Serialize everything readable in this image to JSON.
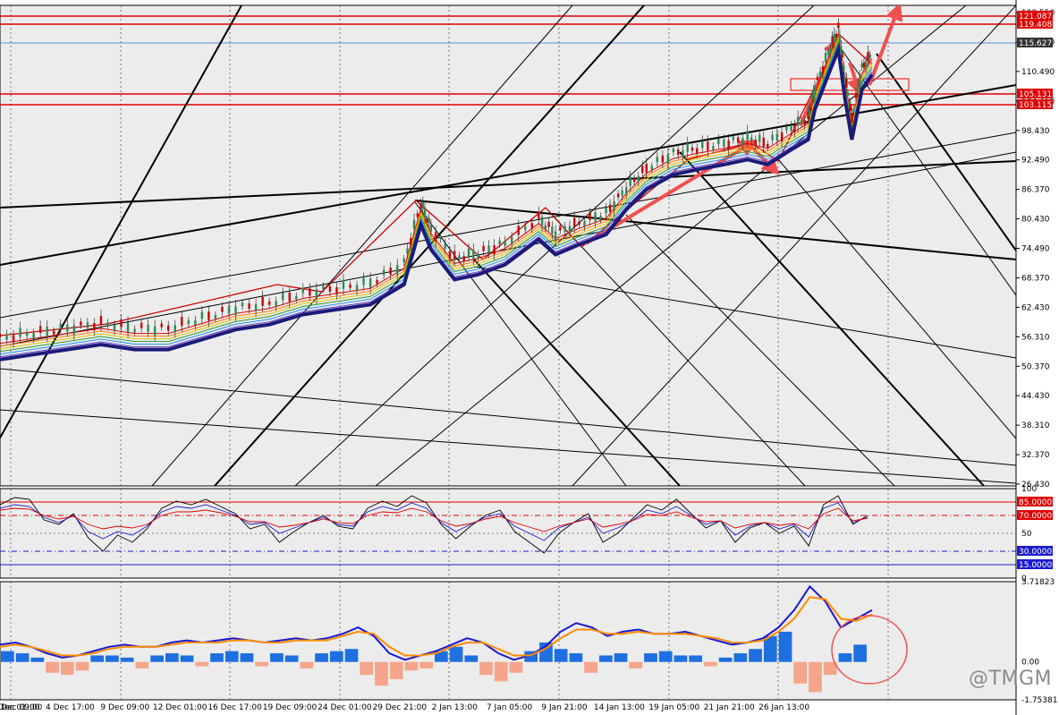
{
  "watermark": "@TMGM",
  "chart_data": [
    {
      "panel": "price",
      "type": "candlestick",
      "ylim": [
        26.43,
        122.55
      ],
      "y_ticks": [
        "122.550",
        "116.520",
        "110.490",
        "104.460",
        "98.430",
        "92.490",
        "86.370",
        "80.430",
        "74.490",
        "68.370",
        "62.430",
        "56.310",
        "50.370",
        "44.430",
        "38.310",
        "32.370",
        "26.430"
      ],
      "price_markers": [
        {
          "label": "121.087",
          "color": "#e00000"
        },
        {
          "label": "119.408",
          "color": "#e00000"
        },
        {
          "label": "115.627",
          "color": "#333333"
        },
        {
          "label": "105.131",
          "color": "#e00000"
        },
        {
          "label": "103.115",
          "color": "#e00000"
        }
      ],
      "x_labels": [
        "1 Dec 09:00",
        "2 Dec 01:00",
        "4 Dec 17:00",
        "9 Dec 09:00",
        "12 Dec 01:00",
        "16 Dec 17:00",
        "19 Dec 09:00",
        "24 Dec 01:00",
        "29 Dec 21:00",
        "2 Jan 13:00",
        "7 Jan 05:00",
        "9 Jan 21:00",
        "14 Jan 13:00",
        "19 Jan 05:00",
        "21 Jan 21:00",
        "26 Jan 13:00"
      ],
      "price_path": [
        [
          0,
          56
        ],
        [
          10,
          57
        ],
        [
          20,
          58
        ],
        [
          30,
          59
        ],
        [
          40,
          58
        ],
        [
          50,
          58
        ],
        [
          60,
          60
        ],
        [
          70,
          62
        ],
        [
          80,
          63
        ],
        [
          90,
          65
        ],
        [
          100,
          66
        ],
        [
          110,
          67
        ],
        [
          120,
          71
        ],
        [
          125,
          83
        ],
        [
          128,
          78
        ],
        [
          135,
          72
        ],
        [
          142,
          73
        ],
        [
          150,
          75
        ],
        [
          160,
          80
        ],
        [
          165,
          77
        ],
        [
          172,
          79
        ],
        [
          180,
          81
        ],
        [
          186,
          86
        ],
        [
          192,
          90
        ],
        [
          200,
          93
        ],
        [
          207,
          94
        ],
        [
          215,
          95
        ],
        [
          222,
          96
        ],
        [
          228,
          95
        ],
        [
          235,
          98
        ],
        [
          240,
          100
        ],
        [
          242,
          106
        ],
        [
          246,
          113
        ],
        [
          249,
          118
        ],
        [
          251,
          108
        ],
        [
          253,
          100
        ],
        [
          256,
          110
        ],
        [
          259,
          113
        ]
      ],
      "guide_lines": [
        {
          "role": "support",
          "color": "#000000"
        },
        {
          "role": "resistance",
          "color": "#000000"
        }
      ],
      "colors": {
        "up": "#2e8b57",
        "down": "#cc0000",
        "ma_thick": "#1b1b7a",
        "arrow": "#f05050",
        "hline": "#e00000",
        "band": "#2a6fd6"
      }
    },
    {
      "panel": "rsi",
      "type": "line",
      "ylim": [
        0,
        100
      ],
      "y_ticks": [
        "100",
        "50",
        "0"
      ],
      "levels": [
        {
          "value": 85,
          "label": "85.0000",
          "color": "#e00000"
        },
        {
          "value": 70,
          "label": "70.0000",
          "color": "#e00000"
        },
        {
          "value": 30,
          "label": "30.0000",
          "color": "#1a1ad0"
        },
        {
          "value": 15,
          "label": "15.0000",
          "color": "#1a1ad0"
        }
      ],
      "series": [
        {
          "color": "#000000",
          "values": [
            82,
            90,
            88,
            65,
            60,
            72,
            45,
            30,
            48,
            40,
            55,
            78,
            86,
            82,
            88,
            80,
            72,
            55,
            60,
            40,
            52,
            62,
            70,
            58,
            55,
            78,
            86,
            80,
            92,
            84,
            60,
            44,
            58,
            70,
            76,
            52,
            40,
            28,
            50,
            62,
            72,
            40,
            50,
            66,
            82,
            76,
            88,
            72,
            56,
            64,
            40,
            56,
            62,
            50,
            58,
            36,
            82,
            92,
            60,
            70
          ]
        },
        {
          "color": "#1a1ad0",
          "values": [
            78,
            82,
            80,
            68,
            62,
            70,
            52,
            44,
            52,
            48,
            58,
            74,
            80,
            78,
            82,
            76,
            70,
            60,
            62,
            50,
            56,
            62,
            68,
            60,
            58,
            74,
            80,
            76,
            84,
            78,
            62,
            52,
            60,
            68,
            72,
            58,
            50,
            42,
            56,
            62,
            68,
            50,
            56,
            64,
            76,
            72,
            80,
            70,
            60,
            64,
            48,
            58,
            62,
            55,
            60,
            46,
            78,
            84,
            62,
            68
          ]
        },
        {
          "color": "#e00000",
          "values": [
            76,
            78,
            77,
            70,
            66,
            69,
            60,
            55,
            58,
            56,
            60,
            70,
            74,
            74,
            76,
            73,
            69,
            63,
            63,
            57,
            59,
            62,
            66,
            62,
            61,
            70,
            74,
            73,
            78,
            74,
            64,
            58,
            61,
            66,
            69,
            62,
            57,
            52,
            58,
            62,
            66,
            57,
            60,
            64,
            71,
            70,
            74,
            68,
            63,
            64,
            56,
            60,
            62,
            59,
            61,
            55,
            72,
            78,
            64,
            67
          ]
        }
      ]
    },
    {
      "panel": "macd",
      "type": "bar+line",
      "ylim": [
        -1.75381,
        3.71823
      ],
      "y_ticks": [
        "3.71823",
        "0.00",
        "-1.75381"
      ],
      "histogram": [
        0.5,
        0.4,
        0.2,
        -0.5,
        -0.6,
        -0.4,
        0.3,
        0.3,
        0.2,
        -0.3,
        0.3,
        0.4,
        0.3,
        -0.2,
        0.4,
        0.5,
        0.4,
        -0.2,
        0.4,
        0.3,
        -0.3,
        0.4,
        0.5,
        0.6,
        -0.6,
        -1.1,
        -0.8,
        -0.4,
        -0.3,
        0.5,
        0.7,
        0.3,
        -0.6,
        -0.9,
        -0.5,
        0.5,
        0.9,
        0.6,
        0.4,
        -0.5,
        0.3,
        0.4,
        -0.3,
        0.4,
        0.5,
        0.3,
        0.3,
        -0.2,
        0.2,
        0.4,
        0.6,
        1.2,
        1.4,
        -1.0,
        -1.4,
        -0.6,
        0.4,
        0.8
      ],
      "series": [
        {
          "color": "#1a1ad0",
          "values": [
            0.8,
            0.9,
            0.7,
            0.4,
            0.2,
            0.3,
            0.5,
            0.7,
            0.8,
            0.7,
            0.7,
            0.9,
            1.0,
            0.9,
            1.0,
            1.1,
            1.0,
            0.9,
            1.0,
            1.1,
            1.0,
            1.1,
            1.3,
            1.6,
            1.2,
            0.4,
            0.1,
            0.3,
            0.5,
            0.8,
            1.1,
            0.9,
            0.4,
            0.1,
            0.3,
            0.7,
            1.4,
            1.8,
            1.6,
            1.2,
            1.4,
            1.5,
            1.3,
            1.3,
            1.4,
            1.2,
            1.0,
            0.8,
            0.9,
            1.1,
            1.6,
            2.4,
            3.5,
            2.8,
            1.6,
            2.0,
            2.4
          ]
        },
        {
          "color": "#ff8c00",
          "values": [
            0.7,
            0.8,
            0.7,
            0.5,
            0.3,
            0.3,
            0.4,
            0.6,
            0.7,
            0.7,
            0.7,
            0.8,
            0.9,
            0.9,
            0.9,
            1.0,
            1.0,
            0.9,
            0.9,
            1.0,
            1.0,
            1.0,
            1.2,
            1.4,
            1.3,
            0.7,
            0.3,
            0.3,
            0.4,
            0.7,
            0.9,
            0.9,
            0.6,
            0.3,
            0.3,
            0.6,
            1.1,
            1.5,
            1.5,
            1.3,
            1.3,
            1.4,
            1.3,
            1.3,
            1.3,
            1.2,
            1.1,
            0.9,
            0.9,
            1.0,
            1.4,
            2.0,
            3.0,
            2.9,
            2.0,
            1.9,
            2.2
          ]
        }
      ]
    }
  ]
}
